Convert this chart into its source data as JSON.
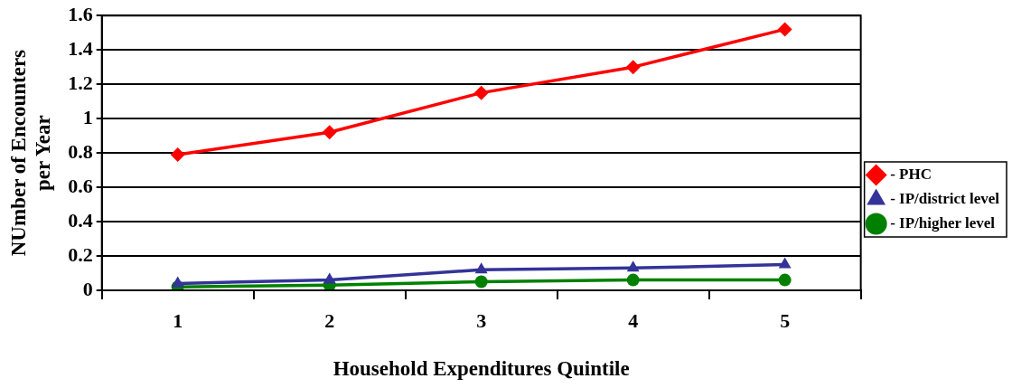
{
  "chart_data": {
    "type": "line",
    "xlabel": "Household Expenditures Quintile",
    "ylabel": "NUmber of Encounters per Year",
    "categories": [
      "1",
      "2",
      "3",
      "4",
      "5"
    ],
    "series": [
      {
        "name": "- PHC",
        "color": "#ff0000",
        "marker": "diamond",
        "values": [
          0.79,
          0.92,
          1.15,
          1.3,
          1.52
        ]
      },
      {
        "name": "- IP/district level",
        "color": "#333399",
        "marker": "triangle",
        "values": [
          0.04,
          0.06,
          0.12,
          0.13,
          0.15
        ]
      },
      {
        "name": "- IP/higher level",
        "color": "#008000",
        "marker": "circle",
        "values": [
          0.02,
          0.03,
          0.05,
          0.06,
          0.06
        ]
      }
    ],
    "ylim": [
      0,
      1.6
    ],
    "yticks": [
      0,
      0.2,
      0.4,
      0.6,
      0.8,
      1,
      1.2,
      1.4,
      1.6
    ],
    "grid": "y",
    "legend": "right"
  }
}
